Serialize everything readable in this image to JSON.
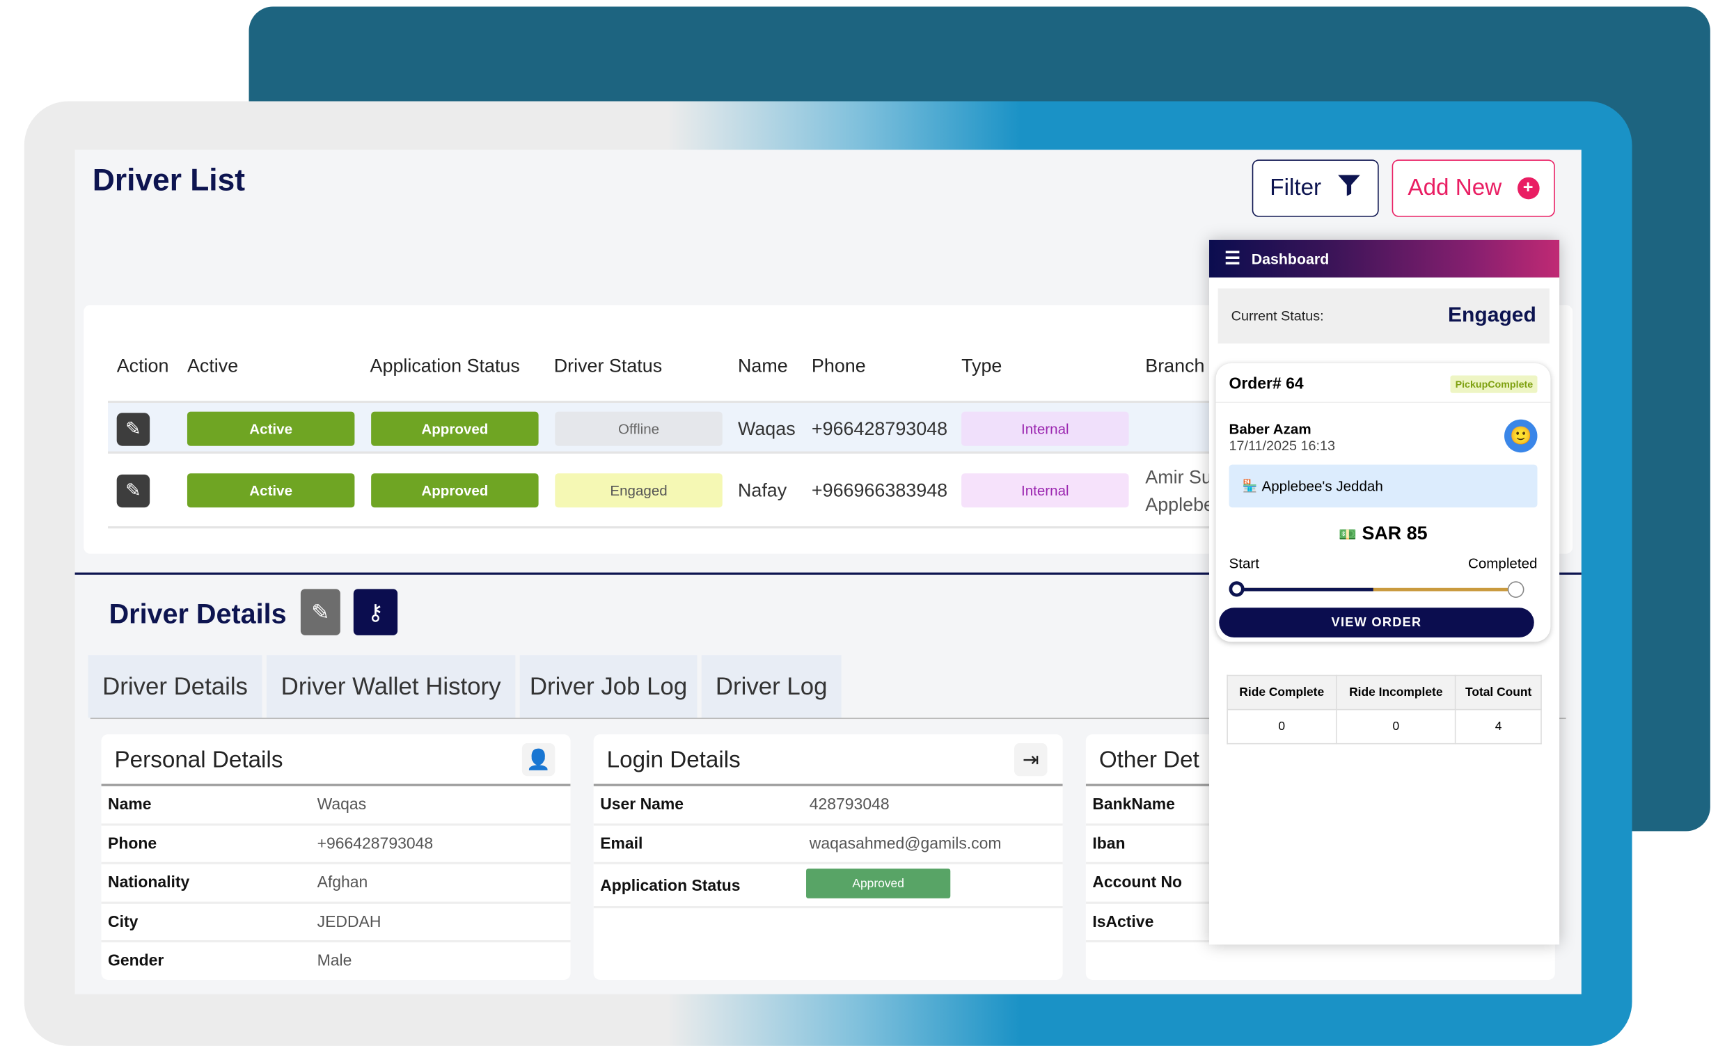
{
  "page": {
    "title": "Driver List",
    "filter_label": "Filter",
    "add_new_label": "Add New"
  },
  "colors": {
    "navy": "#0d1450",
    "accent_pink": "#e91e63",
    "green": "#6fa523",
    "teal_back": "#1d6480",
    "blue_frame": "#1a92c6"
  },
  "table": {
    "headers": [
      "Action",
      "Active",
      "Application Status",
      "Driver Status",
      "Name",
      "Phone",
      "Type",
      "Branch"
    ],
    "rows": [
      {
        "active": "Active",
        "app_status": "Approved",
        "driver_status": "Offline",
        "name": "Waqas",
        "phone": "+966428793048",
        "type": "Internal",
        "branch_line1": "",
        "branch_line2": ""
      },
      {
        "active": "Active",
        "app_status": "Approved",
        "driver_status": "Engaged",
        "name": "Nafay",
        "phone": "+966966383948",
        "type": "Internal",
        "branch_line1": "Amir Su",
        "branch_line2": "Applebe"
      }
    ]
  },
  "details": {
    "title": "Driver Details",
    "tabs": [
      "Driver Details",
      "Driver Wallet History",
      "Driver Job Log",
      "Driver Log"
    ],
    "personal": {
      "title": "Personal Details",
      "rows": [
        [
          "Name",
          "Waqas"
        ],
        [
          "Phone",
          "+966428793048"
        ],
        [
          "Nationality",
          "Afghan"
        ],
        [
          "City",
          "JEDDAH"
        ],
        [
          "Gender",
          "Male"
        ]
      ]
    },
    "login": {
      "title": "Login Details",
      "rows": [
        [
          "User Name",
          "428793048"
        ],
        [
          "Email",
          "waqasahmed@gamils.com"
        ]
      ],
      "app_status_label": "Application Status",
      "app_status_value": "Approved"
    },
    "other": {
      "title": "Other Det",
      "rows": [
        "BankName",
        "Iban",
        "Account No",
        "IsActive"
      ]
    }
  },
  "dashboard": {
    "title": "Dashboard",
    "status_label": "Current Status:",
    "status_value": "Engaged",
    "order": {
      "number": "Order# 64",
      "badge": "PickupComplete",
      "customer": "Baber Azam",
      "datetime": "17/11/2025 16:13",
      "restaurant": "Applebee's Jeddah",
      "amount": "SAR 85",
      "start_label": "Start",
      "end_label": "Completed",
      "progress": 0.5,
      "view_label": "VIEW ORDER"
    },
    "stats": {
      "headers": [
        "Ride Complete",
        "Ride Incomplete",
        "Total Count"
      ],
      "values": [
        "0",
        "0",
        "4"
      ]
    }
  }
}
